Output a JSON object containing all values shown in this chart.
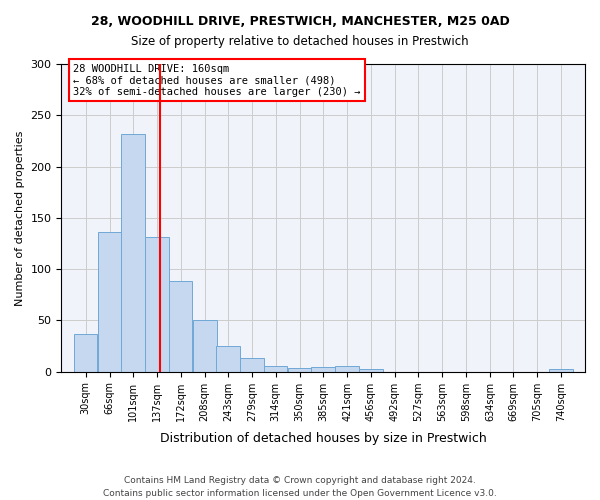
{
  "title1": "28, WOODHILL DRIVE, PRESTWICH, MANCHESTER, M25 0AD",
  "title2": "Size of property relative to detached houses in Prestwich",
  "xlabel": "Distribution of detached houses by size in Prestwich",
  "ylabel": "Number of detached properties",
  "footer1": "Contains HM Land Registry data © Crown copyright and database right 2024.",
  "footer2": "Contains public sector information licensed under the Open Government Licence v3.0.",
  "bin_edges": [
    30,
    66,
    101,
    137,
    172,
    208,
    243,
    279,
    314,
    350,
    385,
    421,
    456,
    492,
    527,
    563,
    598,
    634,
    669,
    705,
    740
  ],
  "bar_heights": [
    37,
    136,
    232,
    131,
    88,
    50,
    25,
    13,
    6,
    4,
    5,
    6,
    3,
    0,
    0,
    0,
    0,
    0,
    0,
    0,
    3
  ],
  "bar_color": "#c5d8f0",
  "bar_edge_color": "#6fa8d6",
  "property_size": 160,
  "annotation_text": "28 WOODHILL DRIVE: 160sqm\n← 68% of detached houses are smaller (498)\n32% of semi-detached houses are larger (230) →",
  "annotation_box_color": "white",
  "annotation_box_edge_color": "red",
  "vline_color": "red",
  "ylim": [
    0,
    300
  ],
  "grid_color": "#cccccc",
  "background_color": "white",
  "plot_bg_color": "#f0f4fa"
}
